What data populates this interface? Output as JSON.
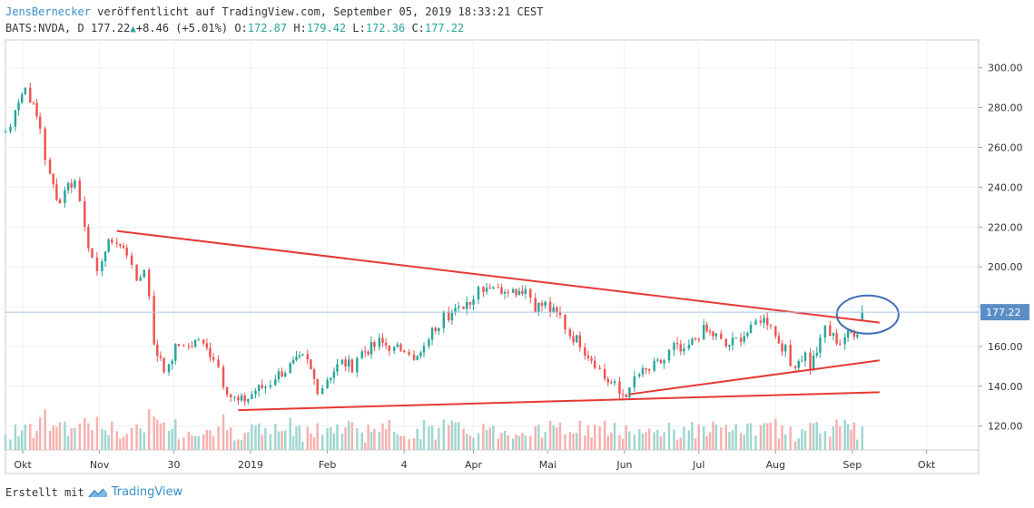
{
  "header": {
    "author": "JensBernecker",
    "published": "veröffentlicht auf TradingView.com, September 05, 2019 18:33:21 CEST",
    "symbol": "BATS:NVDA, D",
    "last": "177.22",
    "change": "+8.46 (+5.01%)",
    "open_label": "O:",
    "open": "172.87",
    "high_label": "H:",
    "high": "179.42",
    "low_label": "L:",
    "low": "172.36",
    "close_label": "C:",
    "close": "177.22"
  },
  "footer": {
    "created_with": "Erstellt mit",
    "brand": "TradingView"
  },
  "colors": {
    "up": "#26a69a",
    "down": "#ef5350",
    "trend": "#e53935",
    "circle": "#3f6fb5",
    "grid": "#eef0f3",
    "price_label_bg": "#5b8ec7"
  },
  "chart_data": {
    "type": "candlestick",
    "title": "NVDA daily",
    "ylim": [
      108,
      314
    ],
    "y_ticks": [
      120,
      140,
      160,
      180,
      200,
      220,
      240,
      260,
      280,
      300
    ],
    "y_tick_labels": [
      "120.00",
      "140.00",
      "160.00",
      "",
      "200.00",
      "220.00",
      "240.00",
      "260.00",
      "280.00",
      "300.00"
    ],
    "x_range": [
      "2018-09-24",
      "2019-10-22"
    ],
    "x_ticks": [
      {
        "date": "2018-10-01",
        "label": "Okt"
      },
      {
        "date": "2018-11-01",
        "label": "Nov"
      },
      {
        "date": "2018-12-01",
        "label": "30"
      },
      {
        "date": "2019-01-01",
        "label": "2019"
      },
      {
        "date": "2019-02-01",
        "label": "Feb"
      },
      {
        "date": "2019-03-04",
        "label": "4"
      },
      {
        "date": "2019-04-01",
        "label": "Apr"
      },
      {
        "date": "2019-05-01",
        "label": "Mai"
      },
      {
        "date": "2019-06-01",
        "label": "Jun"
      },
      {
        "date": "2019-07-01",
        "label": "Jul"
      },
      {
        "date": "2019-08-01",
        "label": "Aug"
      },
      {
        "date": "2019-09-01",
        "label": "Sep"
      },
      {
        "date": "2019-10-01",
        "label": "Okt"
      }
    ],
    "last_price": 177.22,
    "last_price_label": "177.22",
    "closes": [
      [
        "2018-09-24",
        268
      ],
      [
        "2018-09-26",
        270
      ],
      [
        "2018-09-28",
        281
      ],
      [
        "2018-10-02",
        290
      ],
      [
        "2018-10-04",
        285
      ],
      [
        "2018-10-08",
        270
      ],
      [
        "2018-10-10",
        255
      ],
      [
        "2018-10-12",
        245
      ],
      [
        "2018-10-16",
        232
      ],
      [
        "2018-10-18",
        240
      ],
      [
        "2018-10-22",
        243
      ],
      [
        "2018-10-24",
        233
      ],
      [
        "2018-10-26",
        222
      ],
      [
        "2018-10-29",
        202
      ],
      [
        "2018-10-31",
        195
      ],
      [
        "2018-11-02",
        205
      ],
      [
        "2018-11-06",
        214
      ],
      [
        "2018-11-08",
        212
      ],
      [
        "2018-11-12",
        207
      ],
      [
        "2018-11-14",
        203
      ],
      [
        "2018-11-16",
        190
      ],
      [
        "2018-11-19",
        200
      ],
      [
        "2018-11-21",
        185
      ],
      [
        "2018-11-23",
        162
      ],
      [
        "2018-11-27",
        148
      ],
      [
        "2018-11-29",
        152
      ],
      [
        "2018-12-03",
        162
      ],
      [
        "2018-12-05",
        158
      ],
      [
        "2018-12-07",
        160
      ],
      [
        "2018-12-11",
        164
      ],
      [
        "2018-12-13",
        160
      ],
      [
        "2018-12-17",
        155
      ],
      [
        "2018-12-19",
        150
      ],
      [
        "2018-12-21",
        142
      ],
      [
        "2018-12-24",
        135
      ],
      [
        "2018-12-27",
        132
      ],
      [
        "2018-12-31",
        134
      ],
      [
        "2019-01-03",
        138
      ],
      [
        "2019-01-07",
        140
      ],
      [
        "2019-01-09",
        142
      ],
      [
        "2019-01-11",
        145
      ],
      [
        "2019-01-15",
        148
      ],
      [
        "2019-01-17",
        150
      ],
      [
        "2019-01-22",
        154
      ],
      [
        "2019-01-24",
        152
      ],
      [
        "2019-01-28",
        139
      ],
      [
        "2019-01-30",
        140
      ],
      [
        "2019-02-01",
        144
      ],
      [
        "2019-02-05",
        150
      ],
      [
        "2019-02-07",
        152
      ],
      [
        "2019-02-11",
        150
      ],
      [
        "2019-02-13",
        155
      ],
      [
        "2019-02-15",
        157
      ],
      [
        "2019-02-20",
        160
      ],
      [
        "2019-02-22",
        162
      ],
      [
        "2019-02-26",
        160
      ],
      [
        "2019-02-28",
        158
      ],
      [
        "2019-03-04",
        160
      ],
      [
        "2019-03-06",
        158
      ],
      [
        "2019-03-08",
        152
      ],
      [
        "2019-03-12",
        158
      ],
      [
        "2019-03-14",
        165
      ],
      [
        "2019-03-18",
        172
      ],
      [
        "2019-03-20",
        180
      ],
      [
        "2019-03-22",
        176
      ],
      [
        "2019-03-26",
        178
      ],
      [
        "2019-03-28",
        181
      ],
      [
        "2019-04-01",
        185
      ],
      [
        "2019-04-03",
        190
      ],
      [
        "2019-04-05",
        190
      ],
      [
        "2019-04-09",
        191
      ],
      [
        "2019-04-11",
        188
      ],
      [
        "2019-04-15",
        190
      ],
      [
        "2019-04-17",
        188
      ],
      [
        "2019-04-22",
        189
      ],
      [
        "2019-04-24",
        185
      ],
      [
        "2019-04-26",
        180
      ],
      [
        "2019-04-30",
        181
      ],
      [
        "2019-05-02",
        178
      ],
      [
        "2019-05-06",
        175
      ],
      [
        "2019-05-08",
        170
      ],
      [
        "2019-05-10",
        166
      ],
      [
        "2019-05-14",
        162
      ],
      [
        "2019-05-16",
        158
      ],
      [
        "2019-05-20",
        152
      ],
      [
        "2019-05-22",
        148
      ],
      [
        "2019-05-24",
        144
      ],
      [
        "2019-05-28",
        140
      ],
      [
        "2019-05-30",
        136
      ],
      [
        "2019-06-03",
        137
      ],
      [
        "2019-06-05",
        144
      ],
      [
        "2019-06-07",
        146
      ],
      [
        "2019-06-11",
        148
      ],
      [
        "2019-06-13",
        150
      ],
      [
        "2019-06-17",
        153
      ],
      [
        "2019-06-19",
        157
      ],
      [
        "2019-06-21",
        160
      ],
      [
        "2019-06-25",
        156
      ],
      [
        "2019-06-27",
        160
      ],
      [
        "2019-07-01",
        166
      ],
      [
        "2019-07-03",
        168
      ],
      [
        "2019-07-08",
        165
      ],
      [
        "2019-07-10",
        162
      ],
      [
        "2019-07-12",
        160
      ],
      [
        "2019-07-16",
        163
      ],
      [
        "2019-07-18",
        165
      ],
      [
        "2019-07-22",
        168
      ],
      [
        "2019-07-24",
        172
      ],
      [
        "2019-07-26",
        174
      ],
      [
        "2019-07-30",
        172
      ],
      [
        "2019-08-01",
        165
      ],
      [
        "2019-08-05",
        158
      ],
      [
        "2019-08-07",
        150
      ],
      [
        "2019-08-09",
        152
      ],
      [
        "2019-08-13",
        156
      ],
      [
        "2019-08-15",
        150
      ],
      [
        "2019-08-19",
        162
      ],
      [
        "2019-08-21",
        170
      ],
      [
        "2019-08-23",
        166
      ],
      [
        "2019-08-27",
        162
      ],
      [
        "2019-08-29",
        165
      ],
      [
        "2019-09-03",
        168
      ],
      [
        "2019-09-05",
        177.22
      ]
    ],
    "trendlines": [
      {
        "name": "upper-descending",
        "from": [
          "2018-11-08",
          218
        ],
        "to": [
          "2019-09-12",
          172
        ]
      },
      {
        "name": "lower-support",
        "from": [
          "2018-12-27",
          128
        ],
        "to": [
          "2019-09-12",
          137
        ]
      },
      {
        "name": "rising-support",
        "from": [
          "2019-06-03",
          136
        ],
        "to": [
          "2019-09-12",
          153
        ]
      }
    ],
    "annotation": {
      "type": "ellipse",
      "center": [
        "2019-09-05",
        176
      ],
      "note": "breakout circle"
    }
  }
}
